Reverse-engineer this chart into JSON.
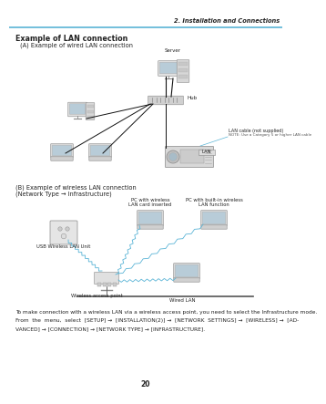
{
  "page_num": "20",
  "header_text": "2. Installation and Connections",
  "header_line_color": "#5ab4d6",
  "title": "Example of LAN connection",
  "section_a": "(A) Example of wired LAN connection",
  "section_b_line1": "(B) Example of wireless LAN connection",
  "section_b_line2": "(Network Type → Infrastructure)",
  "note_line1": "To make connection with a wireless LAN via a wireless access point, you need to select the Infrastructure mode.",
  "note_line2": "From  the  menu,  select  [SETUP] →  [INSTALLATION(2)] →  [NETWORK  SETTINGS] →  [WIRELESS] →  [AD-",
  "note_line3": "VANCED] → [CONNECTION] → [NETWORK TYPE] → [INFRASTRUCTURE].",
  "lan_cable_label": "LAN cable (not supplied)",
  "lan_note": "NOTE: Use a Category 5 or higher LAN cable",
  "lan_label": "LAN",
  "server_label": "Server",
  "hub_label": "Hub",
  "usb_label": "USB Wireless LAN Unit",
  "wap_label": "Wireless access point",
  "wired_lan_label": "Wired LAN",
  "pc_wireless_label1": "PC with wireless",
  "pc_wireless_label2": "LAN card inserted",
  "pc_builtin_label1": "PC with built-in wireless",
  "pc_builtin_label2": "LAN function",
  "bg_color": "#ffffff",
  "text_color": "#222222",
  "blue_line_color": "#5ab4d6",
  "wire_color": "#111111",
  "device_fill": "#e8e8e8",
  "screen_fill": "#b8ccd8",
  "hub_fill": "#d0d0d0"
}
